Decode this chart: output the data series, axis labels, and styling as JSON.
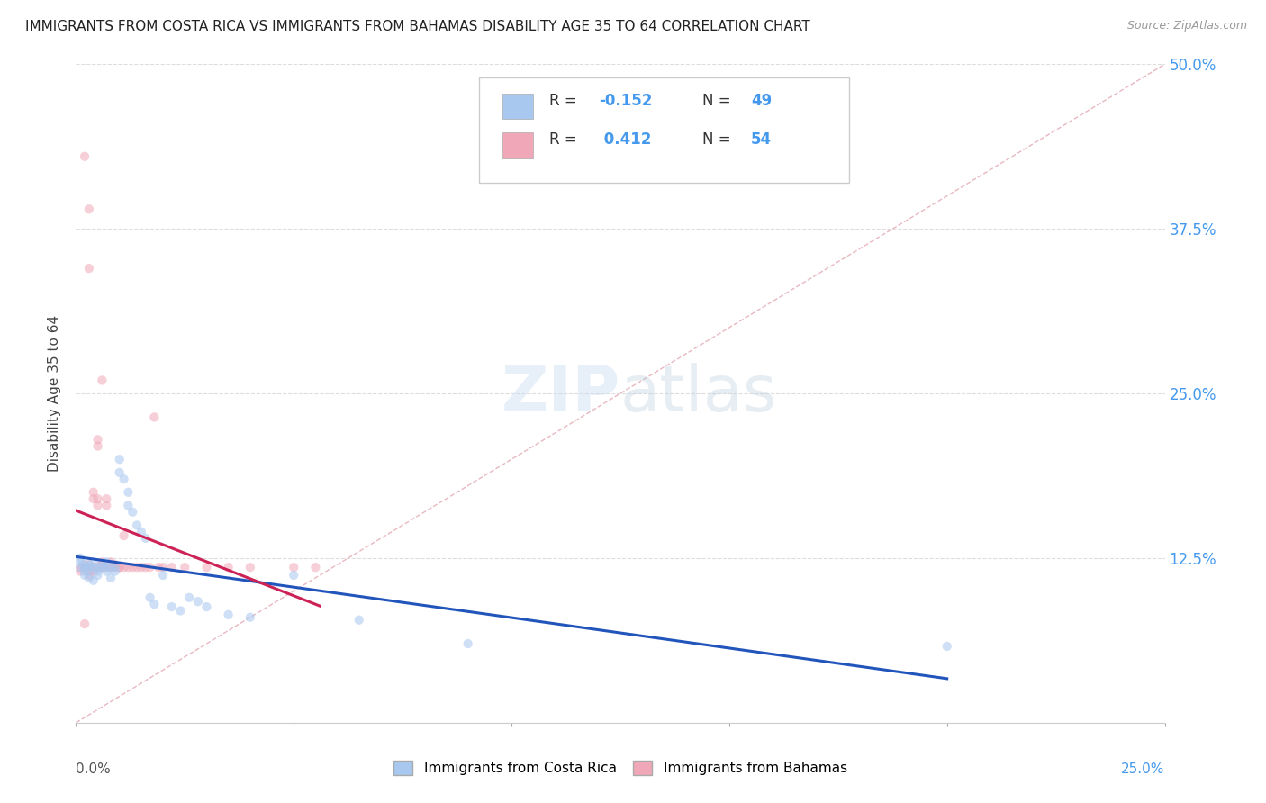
{
  "title": "IMMIGRANTS FROM COSTA RICA VS IMMIGRANTS FROM BAHAMAS DISABILITY AGE 35 TO 64 CORRELATION CHART",
  "source": "Source: ZipAtlas.com",
  "ylabel": "Disability Age 35 to 64",
  "ytick_values": [
    0,
    0.125,
    0.25,
    0.375,
    0.5
  ],
  "ytick_labels": [
    "",
    "12.5%",
    "25.0%",
    "37.5%",
    "50.0%"
  ],
  "xlim": [
    0,
    0.25
  ],
  "ylim": [
    0,
    0.5
  ],
  "r_costa_rica": -0.152,
  "n_costa_rica": 49,
  "r_bahamas": 0.412,
  "n_bahamas": 54,
  "color_costa_rica": "#a8c8f0",
  "color_bahamas": "#f0a8b8",
  "line_color_costa_rica": "#2255bb",
  "line_color_bahamas": "#cc2255",
  "diagonal_color": "#e8b8c0",
  "grid_color": "#dddddd",
  "background_color": "#ffffff",
  "title_color": "#222222",
  "axis_label_color": "#444444",
  "tick_label_color_right": "#4499ee",
  "scatter_alpha": 0.55,
  "scatter_size": 55,
  "watermark_color": "#c5d8f0",
  "watermark_alpha": 0.4,
  "costa_rica_x": [
    0.001,
    0.001,
    0.001,
    0.002,
    0.002,
    0.002,
    0.002,
    0.003,
    0.003,
    0.003,
    0.003,
    0.004,
    0.004,
    0.004,
    0.005,
    0.005,
    0.005,
    0.006,
    0.006,
    0.007,
    0.007,
    0.007,
    0.008,
    0.008,
    0.009,
    0.009,
    0.01,
    0.01,
    0.011,
    0.012,
    0.012,
    0.013,
    0.014,
    0.015,
    0.016,
    0.017,
    0.018,
    0.02,
    0.022,
    0.024,
    0.026,
    0.028,
    0.03,
    0.035,
    0.04,
    0.05,
    0.065,
    0.09,
    0.2
  ],
  "costa_rica_y": [
    0.118,
    0.122,
    0.125,
    0.115,
    0.12,
    0.118,
    0.112,
    0.118,
    0.115,
    0.12,
    0.11,
    0.118,
    0.122,
    0.108,
    0.118,
    0.115,
    0.112,
    0.118,
    0.12,
    0.115,
    0.118,
    0.122,
    0.118,
    0.11,
    0.118,
    0.115,
    0.2,
    0.19,
    0.185,
    0.175,
    0.165,
    0.16,
    0.15,
    0.145,
    0.14,
    0.095,
    0.09,
    0.112,
    0.088,
    0.085,
    0.095,
    0.092,
    0.088,
    0.082,
    0.08,
    0.112,
    0.078,
    0.06,
    0.058
  ],
  "bahamas_x": [
    0.001,
    0.001,
    0.002,
    0.002,
    0.002,
    0.003,
    0.003,
    0.003,
    0.003,
    0.004,
    0.004,
    0.004,
    0.004,
    0.005,
    0.005,
    0.005,
    0.005,
    0.005,
    0.006,
    0.006,
    0.006,
    0.006,
    0.007,
    0.007,
    0.007,
    0.008,
    0.008,
    0.008,
    0.009,
    0.009,
    0.01,
    0.01,
    0.011,
    0.011,
    0.012,
    0.013,
    0.014,
    0.015,
    0.016,
    0.017,
    0.018,
    0.019,
    0.02,
    0.022,
    0.025,
    0.03,
    0.035,
    0.04,
    0.05,
    0.055,
    0.002,
    0.003,
    0.003,
    0.006
  ],
  "bahamas_y": [
    0.118,
    0.115,
    0.075,
    0.12,
    0.118,
    0.118,
    0.112,
    0.12,
    0.115,
    0.175,
    0.17,
    0.118,
    0.115,
    0.215,
    0.21,
    0.165,
    0.17,
    0.118,
    0.118,
    0.122,
    0.118,
    0.12,
    0.165,
    0.17,
    0.118,
    0.118,
    0.122,
    0.118,
    0.12,
    0.118,
    0.118,
    0.118,
    0.142,
    0.118,
    0.118,
    0.118,
    0.118,
    0.118,
    0.118,
    0.118,
    0.232,
    0.118,
    0.118,
    0.118,
    0.118,
    0.118,
    0.118,
    0.118,
    0.118,
    0.118,
    0.43,
    0.39,
    0.345,
    0.26
  ]
}
